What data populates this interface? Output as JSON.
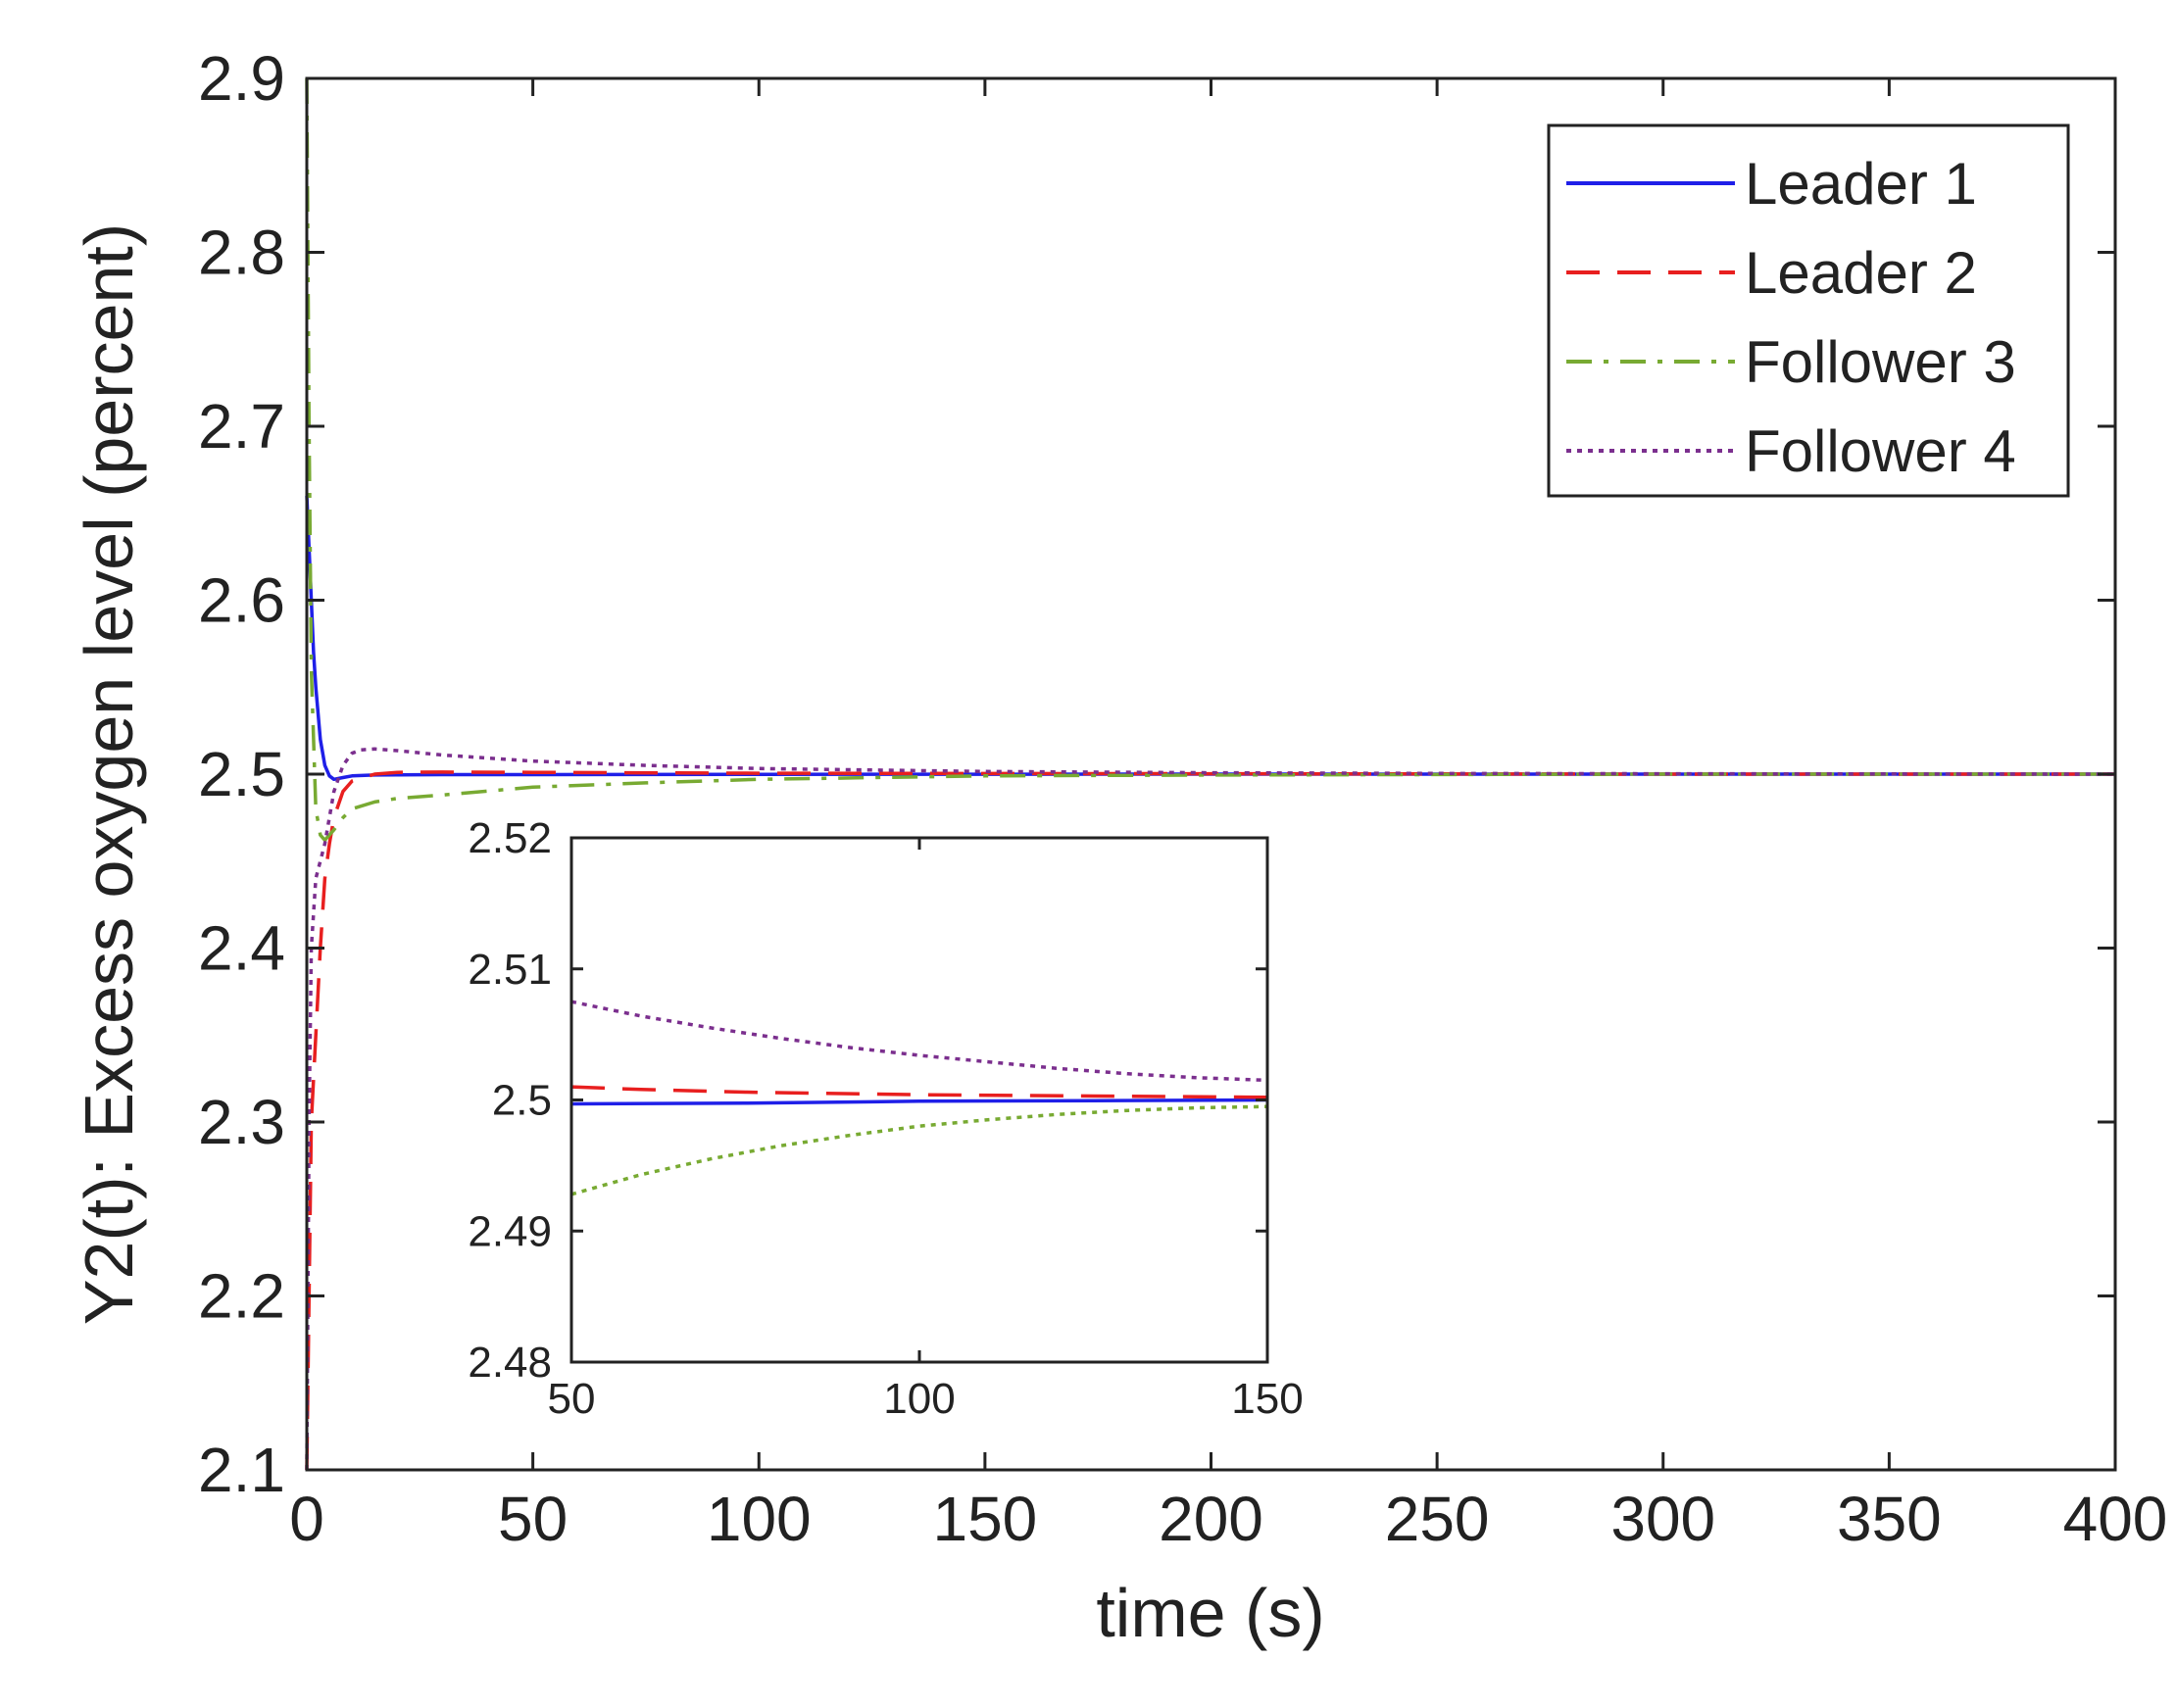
{
  "chart_data": [
    {
      "type": "line",
      "title": "",
      "xlabel": "time (s)",
      "ylabel": "Y2(t): Excess oxygen level (percent)",
      "xlim": [
        0,
        400
      ],
      "ylim": [
        2.1,
        2.9
      ],
      "xticks": [
        "0",
        "50",
        "100",
        "150",
        "200",
        "250",
        "300",
        "350",
        "400"
      ],
      "yticks": [
        "2.1",
        "2.2",
        "2.3",
        "2.4",
        "2.5",
        "2.6",
        "2.7",
        "2.8",
        "2.9"
      ],
      "grid": false,
      "legend_position": "top-right",
      "series": [
        {
          "name": "Leader 1",
          "color": "#1f1fe8",
          "style": "solid",
          "x": [
            0,
            0.5,
            1,
            1.5,
            2,
            3,
            4,
            5,
            6,
            8,
            10,
            15,
            20,
            30,
            50,
            100,
            200,
            300,
            400
          ],
          "y": [
            2.66,
            2.63,
            2.6,
            2.57,
            2.55,
            2.52,
            2.505,
            2.499,
            2.497,
            2.498,
            2.499,
            2.4995,
            2.4996,
            2.4997,
            2.4997,
            2.4999,
            2.5,
            2.5,
            2.5
          ]
        },
        {
          "name": "Leader 2",
          "color": "#e81f1f",
          "style": "dashed",
          "x": [
            0,
            0.5,
            1,
            2,
            3,
            4,
            5,
            6,
            8,
            10,
            15,
            20,
            30,
            50,
            100,
            200,
            300,
            400
          ],
          "y": [
            2.1,
            2.2,
            2.3,
            2.35,
            2.4,
            2.44,
            2.46,
            2.475,
            2.49,
            2.496,
            2.5,
            2.501,
            2.5012,
            2.501,
            2.5005,
            2.5002,
            2.5,
            2.5
          ]
        },
        {
          "name": "Follower 3",
          "color": "#78aa32",
          "style": "dashdot",
          "x": [
            0,
            0.5,
            1,
            2,
            3,
            4,
            6,
            8,
            10,
            15,
            20,
            30,
            50,
            75,
            100,
            150,
            200,
            250,
            300,
            400
          ],
          "y": [
            2.9,
            2.7,
            2.56,
            2.48,
            2.465,
            2.462,
            2.468,
            2.475,
            2.48,
            2.484,
            2.486,
            2.488,
            2.4925,
            2.495,
            2.497,
            2.499,
            2.4995,
            2.4998,
            2.5,
            2.5
          ]
        },
        {
          "name": "Follower 4",
          "color": "#7b2f8e",
          "style": "dotted",
          "x": [
            0,
            0.5,
            1,
            2,
            3,
            4,
            6,
            8,
            10,
            12,
            15,
            20,
            30,
            50,
            75,
            100,
            150,
            200,
            250,
            300,
            400
          ],
          "y": [
            2.1,
            2.3,
            2.4,
            2.44,
            2.45,
            2.46,
            2.49,
            2.505,
            2.512,
            2.514,
            2.5145,
            2.5135,
            2.511,
            2.5075,
            2.505,
            2.5032,
            2.5015,
            2.5008,
            2.5004,
            2.5002,
            2.5
          ]
        }
      ]
    },
    {
      "type": "line",
      "title": "",
      "xlabel": "",
      "ylabel": "",
      "xlim": [
        50,
        150
      ],
      "ylim": [
        2.48,
        2.52
      ],
      "xticks": [
        "50",
        "100",
        "150"
      ],
      "yticks": [
        "2.48",
        "2.49",
        "2.5",
        "2.51",
        "2.52"
      ],
      "grid": false,
      "series": [
        {
          "name": "Leader 1",
          "color": "#1f1fe8",
          "style": "solid",
          "x": [
            50,
            75,
            100,
            125,
            150
          ],
          "y": [
            2.4997,
            2.49975,
            2.4999,
            2.49995,
            2.5
          ]
        },
        {
          "name": "Leader 2",
          "color": "#e81f1f",
          "style": "dashed",
          "x": [
            50,
            60,
            75,
            100,
            125,
            150
          ],
          "y": [
            2.501,
            2.5008,
            2.5006,
            2.5004,
            2.5003,
            2.5002
          ]
        },
        {
          "name": "Follower 3",
          "color": "#78aa32",
          "style": "dotted",
          "x": [
            50,
            60,
            70,
            80,
            90,
            100,
            110,
            120,
            130,
            140,
            150
          ],
          "y": [
            2.4928,
            2.4943,
            2.4955,
            2.4965,
            2.4973,
            2.498,
            2.4985,
            2.4989,
            2.4992,
            2.4994,
            2.4995
          ]
        },
        {
          "name": "Follower 4",
          "color": "#7b2f8e",
          "style": "dotted",
          "x": [
            50,
            60,
            70,
            80,
            90,
            100,
            110,
            120,
            130,
            140,
            150
          ],
          "y": [
            2.5075,
            2.5064,
            2.5055,
            2.5047,
            2.504,
            2.5034,
            2.5029,
            2.5024,
            2.502,
            2.5017,
            2.5015
          ]
        }
      ]
    }
  ]
}
